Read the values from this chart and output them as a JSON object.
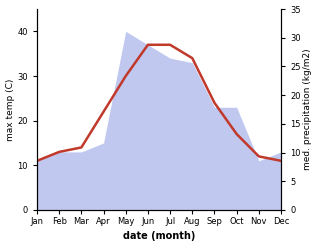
{
  "months": [
    "Jan",
    "Feb",
    "Mar",
    "Apr",
    "May",
    "Jun",
    "Jul",
    "Aug",
    "Sep",
    "Oct",
    "Nov",
    "Dec"
  ],
  "temperature": [
    11,
    13,
    14,
    22,
    30,
    37,
    37,
    34,
    24,
    17,
    12,
    11
  ],
  "precipitation": [
    11,
    13,
    13,
    15,
    40,
    37,
    34,
    33,
    23,
    23,
    11,
    13
  ],
  "temp_color": "#c0392b",
  "precip_fill_color": "#c0c8f0",
  "xlabel": "date (month)",
  "ylabel_left": "max temp (C)",
  "ylabel_right": "med. precipitation (kg/m2)",
  "ylim_left": [
    0,
    45
  ],
  "ylim_right": [
    0,
    35
  ],
  "yticks_left": [
    0,
    10,
    20,
    30,
    40
  ],
  "yticks_right": [
    0,
    5,
    10,
    15,
    20,
    25,
    30,
    35
  ],
  "precip_scale_factor": 0.875,
  "background_color": "#ffffff",
  "temp_linewidth": 1.8,
  "label_fontsize": 6.5,
  "tick_fontsize": 6,
  "xlabel_fontsize": 7
}
